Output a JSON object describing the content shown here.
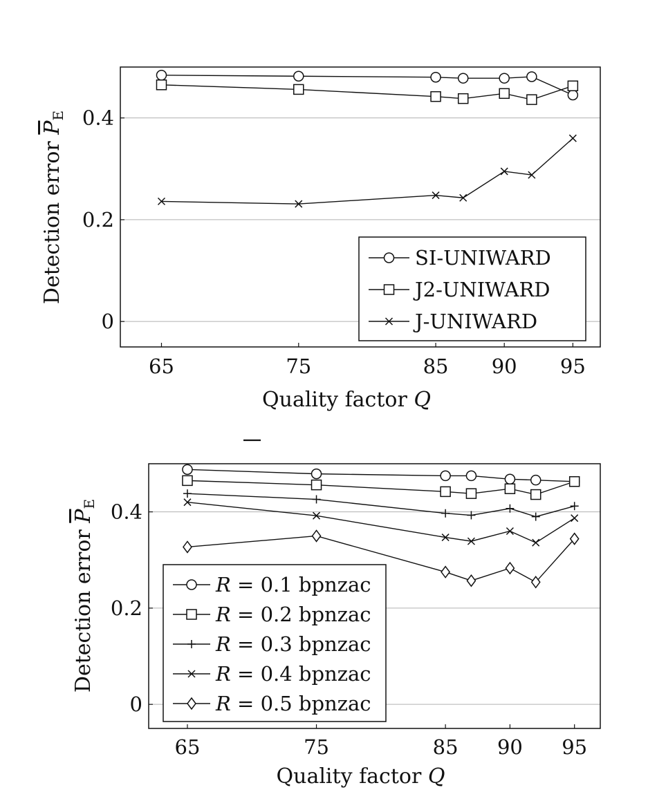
{
  "chart_data": [
    {
      "type": "line",
      "x": [
        65,
        75,
        85,
        87,
        90,
        92,
        95
      ],
      "xticks": [
        "65",
        "75",
        "85",
        "90",
        "95"
      ],
      "yticks": [
        "0",
        "0.2",
        "0.4"
      ],
      "xlim": [
        62,
        97
      ],
      "ylim": [
        -0.05,
        0.5
      ],
      "grid": "horizontal",
      "legend_position": "bottom-right",
      "xlabel": {
        "text": "Quality factor ",
        "var": "Q"
      },
      "ylabel": {
        "text": "Detection error ",
        "var": "P",
        "sub": "E"
      },
      "series": [
        {
          "name": "SI-UNIWARD",
          "marker": "circle",
          "values": [
            0.484,
            0.482,
            0.48,
            0.478,
            0.478,
            0.481,
            0.445
          ]
        },
        {
          "name": "J2-UNIWARD",
          "marker": "square",
          "values": [
            0.465,
            0.456,
            0.442,
            0.438,
            0.448,
            0.436,
            0.463
          ]
        },
        {
          "name": "J-UNIWARD",
          "marker": "x",
          "values": [
            0.236,
            0.231,
            0.248,
            0.243,
            0.295,
            0.288,
            0.36
          ]
        }
      ]
    },
    {
      "type": "line",
      "x": [
        65,
        75,
        85,
        87,
        90,
        92,
        95
      ],
      "xticks": [
        "65",
        "75",
        "85",
        "90",
        "95"
      ],
      "yticks": [
        "0",
        "0.2",
        "0.4"
      ],
      "xlim": [
        62,
        97
      ],
      "ylim": [
        -0.05,
        0.5
      ],
      "grid": "horizontal",
      "legend_position": "bottom-left",
      "xlabel": {
        "text": "Quality factor ",
        "var": "Q"
      },
      "ylabel": {
        "text": "Detection error ",
        "var": "P",
        "sub": "E"
      },
      "series": [
        {
          "name": "R = 0.1 bpnzac",
          "var": "R",
          "rest": " = 0.1 bpnzac",
          "marker": "circle",
          "values": [
            0.488,
            0.479,
            0.475,
            0.475,
            0.468,
            0.466,
            0.463
          ]
        },
        {
          "name": "R = 0.2 bpnzac",
          "var": "R",
          "rest": " = 0.2 bpnzac",
          "marker": "square",
          "values": [
            0.465,
            0.456,
            0.442,
            0.438,
            0.448,
            0.436,
            0.463
          ]
        },
        {
          "name": "R = 0.3 bpnzac",
          "var": "R",
          "rest": " = 0.3 bpnzac",
          "marker": "plus",
          "values": [
            0.438,
            0.426,
            0.397,
            0.393,
            0.407,
            0.39,
            0.412
          ]
        },
        {
          "name": "R = 0.4 bpnzac",
          "var": "R",
          "rest": " = 0.4 bpnzac",
          "marker": "x",
          "values": [
            0.42,
            0.392,
            0.347,
            0.339,
            0.36,
            0.336,
            0.387
          ]
        },
        {
          "name": "R = 0.5 bpnzac",
          "var": "R",
          "rest": " = 0.5 bpnzac",
          "marker": "diamond",
          "values": [
            0.327,
            0.35,
            0.275,
            0.257,
            0.283,
            0.254,
            0.344
          ]
        }
      ]
    }
  ]
}
